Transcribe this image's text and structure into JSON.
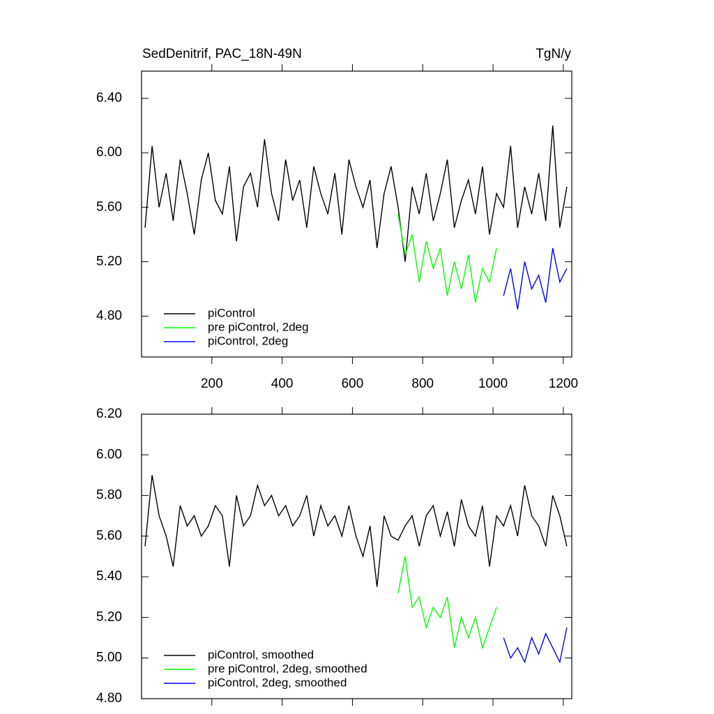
{
  "chart_data": [
    {
      "type": "line",
      "title_left": "SedDenitrif, PAC_18N-49N",
      "title_right": "TgN/y",
      "xlim": [
        0,
        1224
      ],
      "ylim": [
        4.5,
        6.6
      ],
      "xticks": [
        200,
        400,
        600,
        800,
        1000,
        1200
      ],
      "yticks": [
        {
          "value": 4.8,
          "label": "4.80"
        },
        {
          "value": 5.2,
          "label": "5.20"
        },
        {
          "value": 5.6,
          "label": "5.60"
        },
        {
          "value": 6.0,
          "label": "6.00"
        },
        {
          "value": 6.4,
          "label": "6.40"
        }
      ],
      "legend": "lower left",
      "series": [
        {
          "name": "piControl",
          "color": "#000000",
          "x": [
            10,
            30,
            50,
            70,
            90,
            110,
            130,
            150,
            170,
            190,
            210,
            230,
            250,
            270,
            290,
            310,
            330,
            350,
            370,
            390,
            410,
            430,
            450,
            470,
            490,
            510,
            530,
            550,
            570,
            590,
            610,
            630,
            650,
            670,
            690,
            710,
            730,
            750,
            770,
            790,
            810,
            830,
            850,
            870,
            890,
            910,
            930,
            950,
            970,
            990,
            1010,
            1030,
            1050,
            1070,
            1090,
            1110,
            1130,
            1150,
            1170,
            1190,
            1210
          ],
          "values": [
            5.45,
            6.05,
            5.6,
            5.85,
            5.5,
            5.95,
            5.7,
            5.4,
            5.8,
            6.0,
            5.65,
            5.55,
            5.9,
            5.35,
            5.75,
            5.85,
            5.6,
            6.1,
            5.7,
            5.5,
            5.95,
            5.65,
            5.8,
            5.45,
            5.9,
            5.7,
            5.55,
            5.85,
            5.4,
            5.95,
            5.75,
            5.6,
            5.8,
            5.3,
            5.7,
            5.9,
            5.6,
            5.2,
            5.75,
            5.55,
            5.85,
            5.5,
            5.7,
            5.95,
            5.45,
            5.65,
            5.8,
            5.55,
            5.9,
            5.4,
            5.7,
            5.6,
            6.05,
            5.45,
            5.75,
            5.55,
            5.85,
            5.5,
            6.2,
            5.45,
            5.75
          ]
        },
        {
          "name": "pre piControl, 2deg",
          "color": "#00ff00",
          "x": [
            730,
            750,
            770,
            790,
            810,
            830,
            850,
            870,
            890,
            910,
            930,
            950,
            970,
            990,
            1010
          ],
          "values": [
            5.55,
            5.25,
            5.4,
            5.05,
            5.35,
            5.15,
            5.3,
            4.95,
            5.2,
            5.0,
            5.25,
            4.9,
            5.15,
            5.05,
            5.3
          ]
        },
        {
          "name": "piControl, 2deg",
          "color": "#0000ff",
          "x": [
            1030,
            1050,
            1070,
            1090,
            1110,
            1130,
            1150,
            1170,
            1190,
            1210
          ],
          "values": [
            4.95,
            5.15,
            4.85,
            5.2,
            5.0,
            5.1,
            4.9,
            5.3,
            5.05,
            5.15
          ]
        }
      ]
    },
    {
      "type": "line",
      "xlim": [
        0,
        1224
      ],
      "ylim": [
        4.8,
        6.2
      ],
      "xticks": [
        200,
        400,
        600,
        800,
        1000,
        1200
      ],
      "yticks": [
        {
          "value": 4.8,
          "label": "4.80"
        },
        {
          "value": 5.0,
          "label": "5.00"
        },
        {
          "value": 5.2,
          "label": "5.20"
        },
        {
          "value": 5.4,
          "label": "5.40"
        },
        {
          "value": 5.6,
          "label": "5.60"
        },
        {
          "value": 5.8,
          "label": "5.80"
        },
        {
          "value": 6.0,
          "label": "6.00"
        },
        {
          "value": 6.2,
          "label": "6.20"
        }
      ],
      "legend": "lower left",
      "series": [
        {
          "name": "piControl, smoothed",
          "color": "#000000",
          "x": [
            10,
            30,
            50,
            70,
            90,
            110,
            130,
            150,
            170,
            190,
            210,
            230,
            250,
            270,
            290,
            310,
            330,
            350,
            370,
            390,
            410,
            430,
            450,
            470,
            490,
            510,
            530,
            550,
            570,
            590,
            610,
            630,
            650,
            670,
            690,
            710,
            730,
            750,
            770,
            790,
            810,
            830,
            850,
            870,
            890,
            910,
            930,
            950,
            970,
            990,
            1010,
            1030,
            1050,
            1070,
            1090,
            1110,
            1130,
            1150,
            1170,
            1190,
            1210
          ],
          "values": [
            5.55,
            5.9,
            5.7,
            5.6,
            5.45,
            5.75,
            5.65,
            5.7,
            5.6,
            5.65,
            5.75,
            5.7,
            5.45,
            5.8,
            5.65,
            5.7,
            5.85,
            5.75,
            5.8,
            5.7,
            5.75,
            5.65,
            5.7,
            5.8,
            5.6,
            5.75,
            5.65,
            5.7,
            5.6,
            5.75,
            5.6,
            5.5,
            5.65,
            5.35,
            5.7,
            5.6,
            5.58,
            5.65,
            5.7,
            5.55,
            5.7,
            5.75,
            5.6,
            5.72,
            5.55,
            5.78,
            5.65,
            5.6,
            5.75,
            5.45,
            5.7,
            5.65,
            5.75,
            5.6,
            5.85,
            5.7,
            5.65,
            5.55,
            5.8,
            5.7,
            5.55
          ]
        },
        {
          "name": "pre piControl, 2deg, smoothed",
          "color": "#00ff00",
          "x": [
            730,
            750,
            770,
            790,
            810,
            830,
            850,
            870,
            890,
            910,
            930,
            950,
            970,
            990,
            1010
          ],
          "values": [
            5.32,
            5.5,
            5.25,
            5.3,
            5.15,
            5.25,
            5.2,
            5.3,
            5.05,
            5.2,
            5.1,
            5.2,
            5.05,
            5.15,
            5.25
          ]
        },
        {
          "name": "piControl, 2deg, smoothed",
          "color": "#0000ff",
          "x": [
            1030,
            1050,
            1070,
            1090,
            1110,
            1130,
            1150,
            1170,
            1190,
            1210
          ],
          "values": [
            5.1,
            5.0,
            5.05,
            4.98,
            5.1,
            5.02,
            5.12,
            5.05,
            4.98,
            5.15
          ]
        }
      ]
    }
  ]
}
